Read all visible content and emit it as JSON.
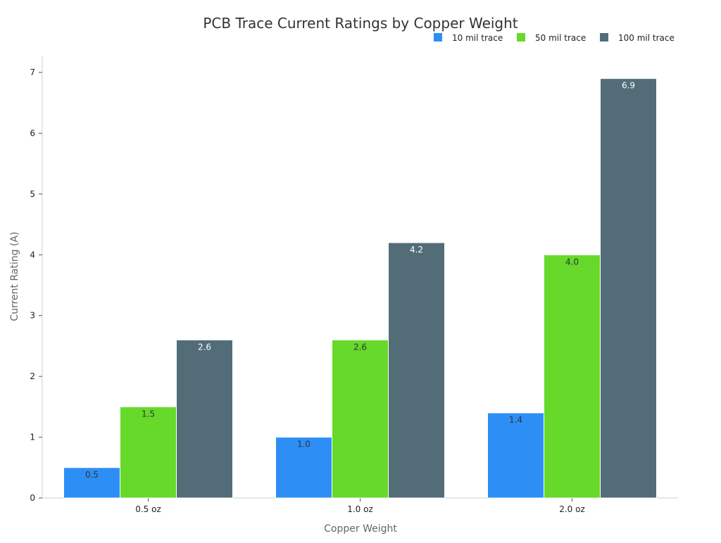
{
  "chart_data": {
    "type": "bar",
    "title": "PCB Trace Current Ratings by Copper Weight",
    "xlabel": "Copper Weight",
    "ylabel": "Current Rating (A)",
    "categories": [
      "0.5 oz",
      "1.0 oz",
      "2.0 oz"
    ],
    "series": [
      {
        "name": "10 mil trace",
        "values": [
          0.5,
          1.0,
          1.4
        ],
        "color": "#2d8ff5",
        "label_color": "#333333"
      },
      {
        "name": "50 mil trace",
        "values": [
          1.5,
          2.6,
          4.0
        ],
        "color": "#66d92a",
        "label_color": "#333333"
      },
      {
        "name": "100 mil trace",
        "values": [
          2.6,
          4.2,
          6.9
        ],
        "color": "#526d78",
        "label_color": "#ffffff"
      }
    ],
    "ylim": [
      0,
      7
    ],
    "yticks": [
      "0",
      "1",
      "2",
      "3",
      "4",
      "5",
      "6",
      "7"
    ],
    "grid": false,
    "legend_position": "top-right"
  }
}
